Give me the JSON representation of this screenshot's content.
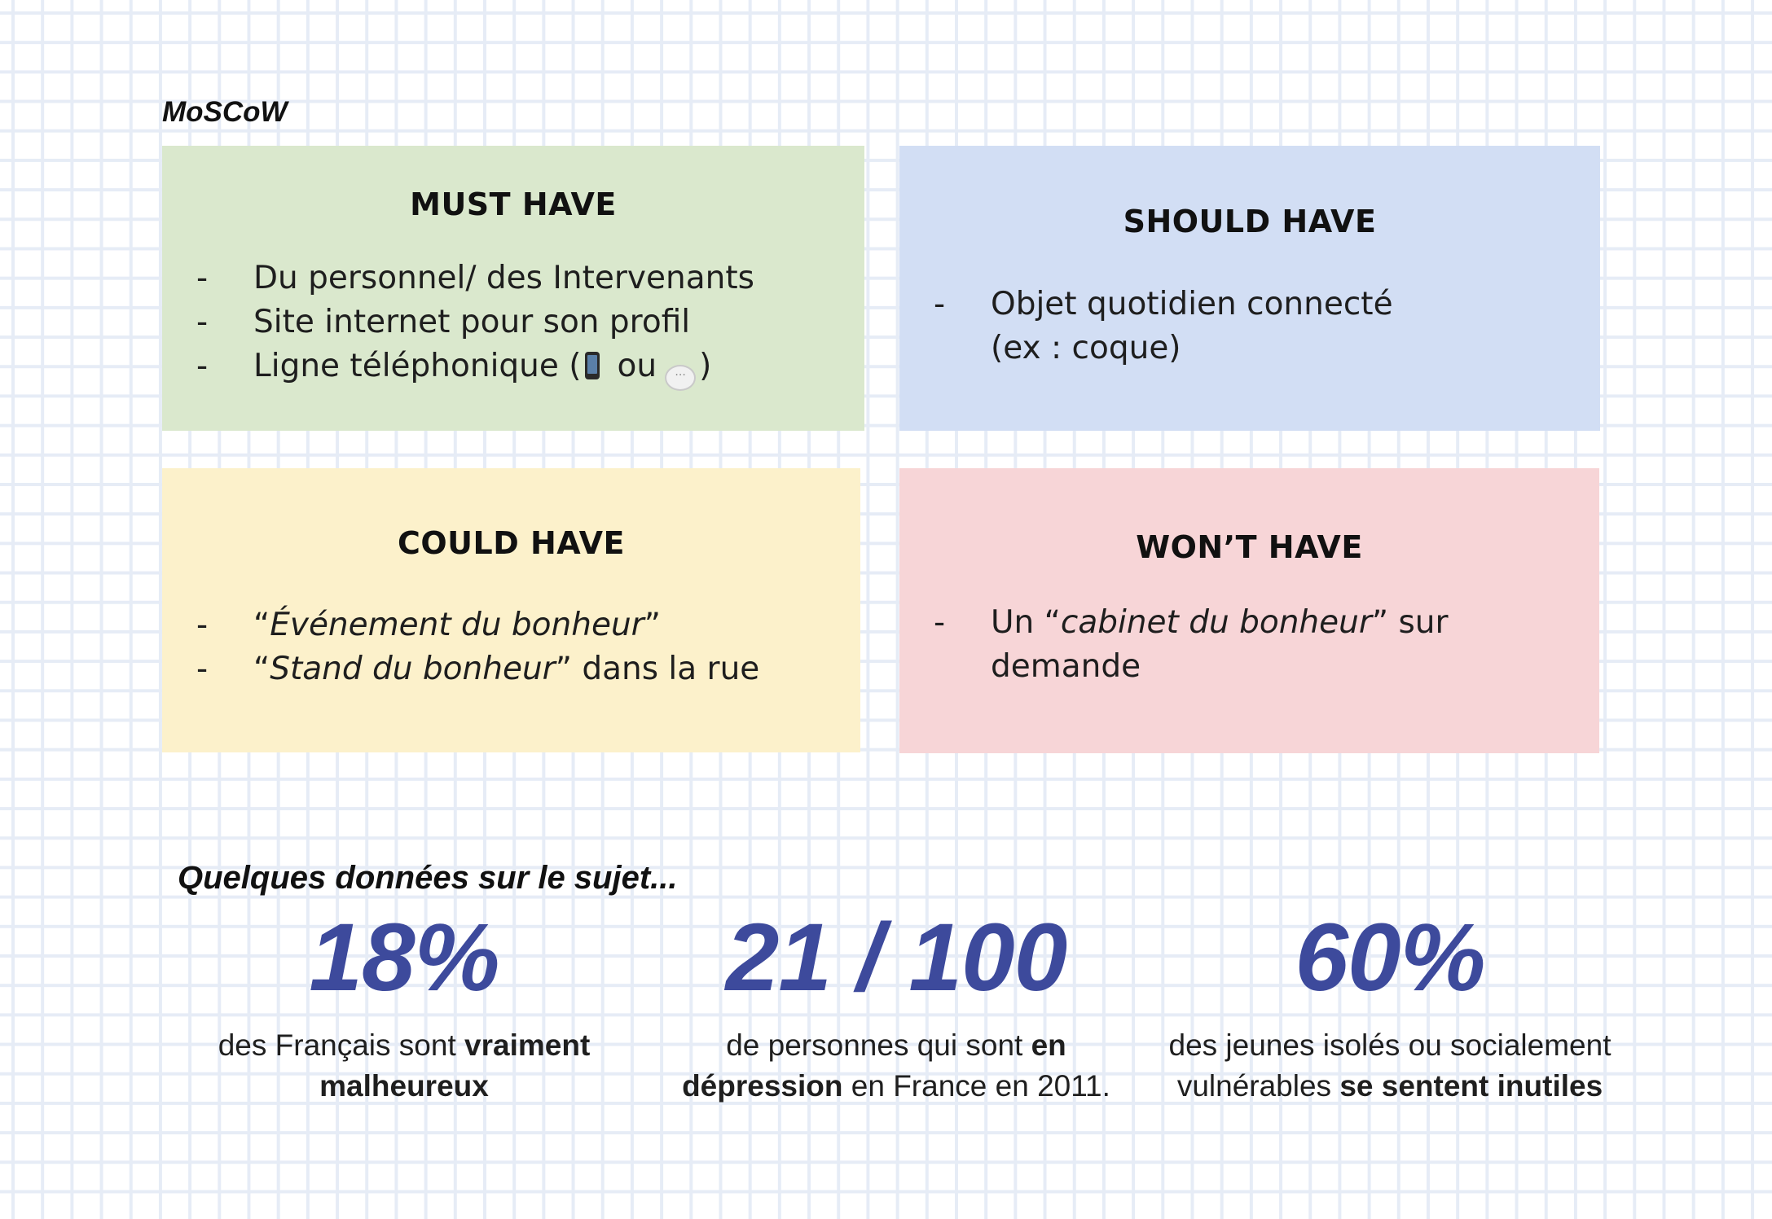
{
  "title": "MoSCoW",
  "quadrants": {
    "must": {
      "title": "MUST HAVE",
      "color": "#dae8cd",
      "items": [
        "Du personnel/  des Intervenants",
        "Site internet pour son profil"
      ],
      "phone_line": {
        "before": "Ligne téléphonique (",
        "middle": "ou",
        "after": ")",
        "icons": [
          "mobile-phone-icon",
          "speech-bubble-icon"
        ]
      }
    },
    "should": {
      "title": "SHOULD HAVE",
      "color": "#d2def4",
      "item_line1": "Objet quotidien connecté",
      "item_line2": "(ex : coque)"
    },
    "could": {
      "title": "COULD HAVE",
      "color": "#fcf1cb",
      "item1": {
        "open": "“",
        "em": "Événement du bonheur",
        "close": "”"
      },
      "item2": {
        "open": "“",
        "em": "Stand du bonheur",
        "close": "” dans la rue"
      }
    },
    "wont": {
      "title": "WON’T HAVE",
      "color": "#f7d5d7",
      "line1": {
        "pre": "Un “",
        "em": "cabinet du bonheur",
        "post": "” sur"
      },
      "line2": "demande"
    }
  },
  "dash": "-",
  "data_heading": "Quelques données sur le sujet...",
  "stats": [
    {
      "value": "18%",
      "line1_pre": "des Français sont ",
      "line1_bold": "vraiment",
      "line2_bold": "malheureux",
      "line2_post": ""
    },
    {
      "value": "21 / 100",
      "line1_pre": "de personnes qui sont ",
      "line1_bold": "en",
      "line2_bold": "dépression",
      "line2_post": " en France en 2011."
    },
    {
      "value": "60%",
      "line1_pre": "des jeunes isolés ou socialement",
      "line1_bold": "",
      "line2_pre": "vulnérables ",
      "line2_bold": "se sentent inutiles"
    }
  ],
  "accent_color": "#3d4a9c"
}
